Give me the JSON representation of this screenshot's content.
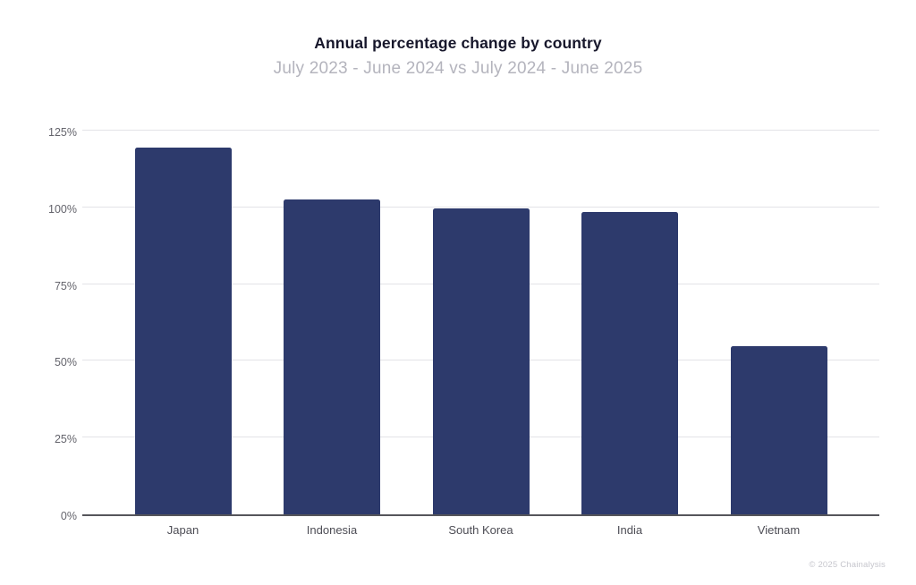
{
  "header": {
    "title": "Annual percentage change by country",
    "subtitle": "July 2023 - June 2024 vs July 2024 - June 2025"
  },
  "footer": {
    "copyright": "© 2025 Chainalysis"
  },
  "colors": {
    "bar": "#2d3a6c",
    "gridline": "#e3e3e7",
    "axis_baseline": "#55555b",
    "title_text": "#17172b",
    "subtitle_text": "#b4b4bd",
    "ytick_text": "#64646c",
    "xtick_text": "#4d4d55",
    "copyright_text": "#c6c6cd"
  },
  "chart_data": {
    "type": "bar",
    "title": "Annual percentage change by country",
    "subtitle": "July 2023 - June 2024 vs July 2024 - June 2025",
    "categories": [
      "Japan",
      "Indonesia",
      "South Korea",
      "India",
      "Vietnam"
    ],
    "values": [
      120,
      103,
      100,
      99,
      55
    ],
    "unit": "%",
    "xlabel": "",
    "ylabel": "",
    "ylim": [
      0,
      125
    ],
    "yticks": [
      0,
      25,
      50,
      75,
      100,
      125
    ],
    "ytick_labels": [
      "0%",
      "25%",
      "50%",
      "75%",
      "100%",
      "125%"
    ],
    "grid": true,
    "legend": false,
    "bar_color": "#2d3a6c"
  }
}
